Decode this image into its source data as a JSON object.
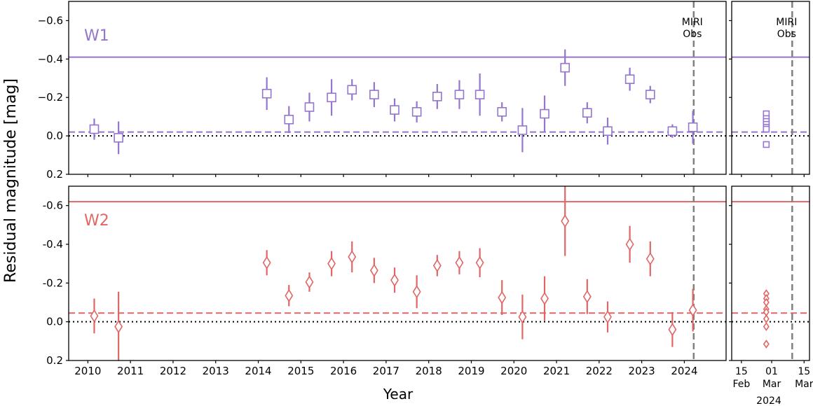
{
  "chart_data": {
    "type": "scatter",
    "ylabel": "Residual magnitude [mag]",
    "xlabel": "Year",
    "y_axis_inverted": true,
    "ylim": [
      0.2,
      -0.7
    ],
    "y_ticks": [
      -0.6,
      -0.4,
      -0.2,
      0.0,
      0.2
    ],
    "y_tick_labels": [
      "−0.6",
      "−0.4",
      "−0.2",
      "0.0",
      "0.2"
    ],
    "y_tick_labels_bottom": [
      "-0.6",
      "-0.4",
      "-0.2",
      "0.0",
      "0.2"
    ],
    "x_ticks": [
      2010,
      2011,
      2012,
      2013,
      2014,
      2015,
      2016,
      2017,
      2018,
      2019,
      2020,
      2021,
      2022,
      2023,
      2024
    ],
    "xlim": [
      2009.55,
      2024.98
    ],
    "zoom_axis": {
      "x_ticks": [
        15,
        29,
        44
      ],
      "x_tick_labels": [
        [
          "15",
          "Feb"
        ],
        [
          "01",
          "Mar"
        ],
        [
          "15",
          "Mar"
        ]
      ],
      "year_label": "2024"
    },
    "miri_obs": {
      "label_line1": "MIRI",
      "label_line2": "Obs",
      "year": 2024.22,
      "zoom_day": 38.5
    },
    "panels": [
      {
        "name": "W1",
        "label": "W1",
        "color": "#9575cd",
        "marker": "square",
        "ylim": [
          0.2,
          -0.7
        ],
        "upper_line": -0.41,
        "mean_line": -0.02,
        "zero_line": 0.0,
        "points": [
          {
            "x": 2010.15,
            "y": -0.035,
            "err": 0.055
          },
          {
            "x": 2010.72,
            "y": 0.01,
            "err": 0.085
          },
          {
            "x": 2014.2,
            "y": -0.22,
            "err": 0.085
          },
          {
            "x": 2014.72,
            "y": -0.085,
            "err": 0.07
          },
          {
            "x": 2015.2,
            "y": -0.15,
            "err": 0.075
          },
          {
            "x": 2015.72,
            "y": -0.2,
            "err": 0.095
          },
          {
            "x": 2016.2,
            "y": -0.24,
            "err": 0.055
          },
          {
            "x": 2016.72,
            "y": -0.215,
            "err": 0.065
          },
          {
            "x": 2017.2,
            "y": -0.135,
            "err": 0.06
          },
          {
            "x": 2017.72,
            "y": -0.125,
            "err": 0.055
          },
          {
            "x": 2018.2,
            "y": -0.205,
            "err": 0.065
          },
          {
            "x": 2018.72,
            "y": -0.215,
            "err": 0.075
          },
          {
            "x": 2019.2,
            "y": -0.215,
            "err": 0.11
          },
          {
            "x": 2019.72,
            "y": -0.125,
            "err": 0.05
          },
          {
            "x": 2020.2,
            "y": -0.03,
            "err": 0.115
          },
          {
            "x": 2020.72,
            "y": -0.115,
            "err": 0.095
          },
          {
            "x": 2021.2,
            "y": -0.355,
            "err": 0.095
          },
          {
            "x": 2021.72,
            "y": -0.12,
            "err": 0.055
          },
          {
            "x": 2022.2,
            "y": -0.025,
            "err": 0.07
          },
          {
            "x": 2022.72,
            "y": -0.295,
            "err": 0.06
          },
          {
            "x": 2023.2,
            "y": -0.215,
            "err": 0.045
          },
          {
            "x": 2023.72,
            "y": -0.025,
            "err": 0.035
          },
          {
            "x": 2024.2,
            "y": -0.045,
            "err": 0.085
          }
        ],
        "zoom_points": [
          {
            "day": 26.5,
            "y": -0.115
          },
          {
            "day": 26.5,
            "y": -0.09
          },
          {
            "day": 26.5,
            "y": -0.075
          },
          {
            "day": 26.5,
            "y": -0.06
          },
          {
            "day": 26.5,
            "y": -0.045
          },
          {
            "day": 26.5,
            "y": -0.035
          },
          {
            "day": 26.5,
            "y": 0.045
          }
        ]
      },
      {
        "name": "W2",
        "label": "W2",
        "color": "#e06666",
        "marker": "diamond",
        "ylim": [
          0.2,
          -0.7
        ],
        "upper_line": -0.62,
        "mean_line": -0.045,
        "zero_line": 0.0,
        "points": [
          {
            "x": 2010.15,
            "y": -0.03,
            "err": 0.09
          },
          {
            "x": 2010.72,
            "y": 0.025,
            "err": 0.18
          },
          {
            "x": 2014.2,
            "y": -0.305,
            "err": 0.065
          },
          {
            "x": 2014.72,
            "y": -0.135,
            "err": 0.055
          },
          {
            "x": 2015.2,
            "y": -0.205,
            "err": 0.05
          },
          {
            "x": 2015.72,
            "y": -0.3,
            "err": 0.065
          },
          {
            "x": 2016.2,
            "y": -0.335,
            "err": 0.08
          },
          {
            "x": 2016.72,
            "y": -0.265,
            "err": 0.065
          },
          {
            "x": 2017.2,
            "y": -0.215,
            "err": 0.065
          },
          {
            "x": 2017.72,
            "y": -0.155,
            "err": 0.085
          },
          {
            "x": 2018.2,
            "y": -0.29,
            "err": 0.055
          },
          {
            "x": 2018.72,
            "y": -0.305,
            "err": 0.06
          },
          {
            "x": 2019.2,
            "y": -0.305,
            "err": 0.075
          },
          {
            "x": 2019.72,
            "y": -0.125,
            "err": 0.09
          },
          {
            "x": 2020.2,
            "y": -0.025,
            "err": 0.115
          },
          {
            "x": 2020.72,
            "y": -0.12,
            "err": 0.115
          },
          {
            "x": 2021.2,
            "y": -0.52,
            "err": 0.18
          },
          {
            "x": 2021.72,
            "y": -0.13,
            "err": 0.09
          },
          {
            "x": 2022.2,
            "y": -0.025,
            "err": 0.08
          },
          {
            "x": 2022.72,
            "y": -0.4,
            "err": 0.095
          },
          {
            "x": 2023.2,
            "y": -0.325,
            "err": 0.09
          },
          {
            "x": 2023.72,
            "y": 0.04,
            "err": 0.09
          },
          {
            "x": 2024.2,
            "y": -0.06,
            "err": 0.11
          }
        ],
        "zoom_points": [
          {
            "day": 26.5,
            "y": -0.145
          },
          {
            "day": 26.5,
            "y": -0.12
          },
          {
            "day": 26.5,
            "y": -0.1
          },
          {
            "day": 26.5,
            "y": -0.065
          },
          {
            "day": 26.5,
            "y": -0.05
          },
          {
            "day": 26.5,
            "y": -0.015
          },
          {
            "day": 26.5,
            "y": 0.025
          },
          {
            "day": 26.5,
            "y": 0.115
          }
        ]
      }
    ]
  }
}
